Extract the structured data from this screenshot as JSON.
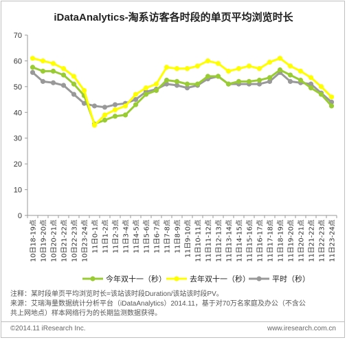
{
  "title": "iDataAnalytics-淘系访客各时段的单页平均浏览时长",
  "chart_data": {
    "type": "line",
    "categories": [
      "10日18-19点",
      "10日19-20点",
      "10日20-21点",
      "10日21-22点",
      "10日22-23点",
      "10日23-24点",
      "11日0-1点",
      "11日1-2点",
      "11日2-3点",
      "11日3-4点",
      "11日4-5点",
      "11日5-6点",
      "11日6-7点",
      "11日7-8点",
      "11日8-9点",
      "11日9-10点",
      "11日10-11点",
      "11日11-12点",
      "11日12-13点",
      "11日13-14点",
      "11日14-15点",
      "11日15-16点",
      "11日16-17点",
      "11日17-18点",
      "11日18-19点",
      "11日19-20点",
      "11日20-21点",
      "11日21-22点",
      "11日22-23点",
      "11日23-24点"
    ],
    "ylim": [
      0,
      70
    ],
    "yticks": [
      0,
      10,
      20,
      30,
      40,
      50,
      60,
      70
    ],
    "series": [
      {
        "name": "今年双十一（秒）",
        "color": "#99cc33",
        "values": [
          57.5,
          56,
          56,
          54.5,
          51,
          46.5,
          35.5,
          37,
          38.5,
          39,
          43,
          47,
          48.5,
          52.5,
          52,
          51,
          51,
          54,
          54,
          51,
          52,
          52,
          52.5,
          53.5,
          56.5,
          54.5,
          52.5,
          49.5,
          47,
          42.5
        ]
      },
      {
        "name": "去年双十一（秒）",
        "color": "#ffff00",
        "values": [
          61,
          60,
          59,
          57,
          54,
          48.5,
          35,
          39,
          41,
          42.5,
          47,
          49.5,
          51,
          57.5,
          57,
          57,
          58,
          60,
          59,
          56,
          57,
          58,
          57,
          59.5,
          61,
          58,
          56,
          53.5,
          50,
          46
        ]
      },
      {
        "name": "平时（秒）",
        "color": "#999999",
        "values": [
          55.5,
          52,
          51.5,
          50.5,
          47,
          43.5,
          42.5,
          42,
          43,
          43.5,
          45,
          48,
          49,
          51,
          50.5,
          49.5,
          50.5,
          53,
          54,
          51,
          51,
          51,
          51,
          52,
          55.5,
          52,
          51.5,
          51,
          47.5,
          44
        ]
      }
    ]
  },
  "notes": {
    "line1": "注释：某时段单页平均浏览时长=该站该时段Duration/该站该时段PV。",
    "line2": "来源：艾瑞海量数据统计分析平台（iDataAnalytics）2014.11，基于对70万名家庭及办公（不含公",
    "line3": "共上网地点）样本网络行为的长期监测数据获得。"
  },
  "footer": {
    "left": "©2014.11 iResearch Inc.",
    "right": "www.iresearch.com.cn"
  }
}
